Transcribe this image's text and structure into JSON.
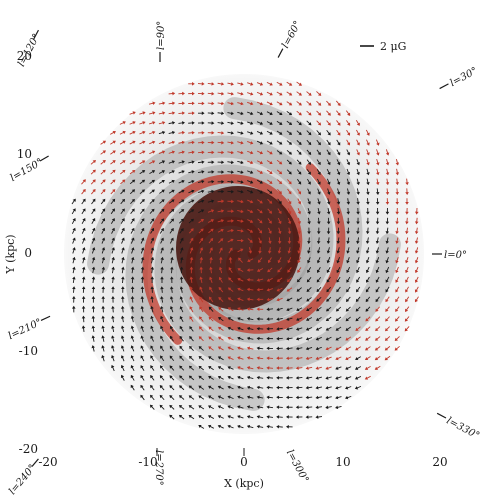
{
  "axes": {
    "x_label": "X (kpc)",
    "y_label": "Y (kpc)",
    "x_ticks": [
      "-20",
      "-10",
      "0",
      "10",
      "20"
    ],
    "y_ticks": [
      "20",
      "10",
      "0",
      "-10",
      "-20"
    ]
  },
  "scale_bar": {
    "label": "2 μG"
  },
  "longitude_labels": [
    "l=0°",
    "l=30°",
    "l=60°",
    "l=90°",
    "l=120°",
    "l=150°",
    "l=210°",
    "l=240°",
    "l=270°",
    "l=300°",
    "l=330°"
  ],
  "colors": {
    "arrow_dark": "#1a1a1a",
    "arrow_red": "#c0392b",
    "disk_gray": "#9a9a9a",
    "core": "#4a1a14"
  }
}
